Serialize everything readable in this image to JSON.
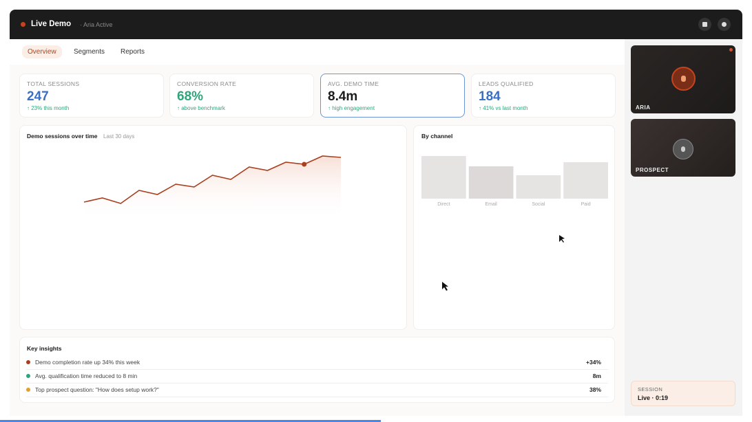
{
  "header": {
    "title": "Live Demo",
    "status": "· Aria Active"
  },
  "tabs": [
    "Overview",
    "Segments",
    "Reports"
  ],
  "kpis": [
    {
      "label": "TOTAL SESSIONS",
      "value": "247",
      "note": "↑ 23% this month"
    },
    {
      "label": "CONVERSION RATE",
      "value": "68%",
      "note": "↑ above benchmark"
    },
    {
      "label": "AVG. DEMO TIME",
      "value": "8.4m",
      "note": "↑ high engagement"
    },
    {
      "label": "LEADS QUALIFIED",
      "value": "184",
      "note": "↑ 41% vs last month"
    }
  ],
  "sessions_chart": {
    "type": "line",
    "title": "Demo sessions over time",
    "subtitle": "Last 30 days",
    "values": [
      16,
      22,
      14,
      33,
      27,
      42,
      38,
      55,
      49,
      67,
      62,
      74,
      71,
      83,
      81
    ],
    "ylim": [
      0,
      100
    ],
    "color": "#a8401f"
  },
  "channel_chart": {
    "type": "bar",
    "title": "By channel",
    "categories": [
      "Direct",
      "Email",
      "Social",
      "Paid"
    ],
    "values": [
      62,
      47,
      34,
      53
    ],
    "ylim": [
      0,
      100
    ],
    "color": "#e6e4e3"
  },
  "insights": {
    "title": "Key insights",
    "rows": [
      {
        "text": "Demo completion rate up 34% this week",
        "value": "+34%",
        "color": "#a8401f"
      },
      {
        "text": "Avg. qualification time reduced to 8 min",
        "value": "8m",
        "color": "#2fa57a"
      },
      {
        "text": "Top prospect question: \"How does setup work?\"",
        "value": "38%",
        "color": "#e0a030"
      }
    ]
  },
  "participants": [
    {
      "name": "ARIA"
    },
    {
      "name": "PROSPECT"
    }
  ],
  "session": {
    "label": "SESSION",
    "status": "Live · 0:19"
  }
}
